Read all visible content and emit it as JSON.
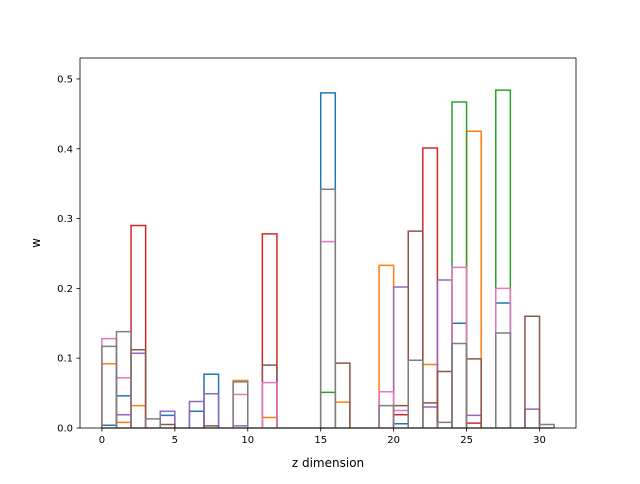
{
  "chart_data": {
    "type": "bar",
    "title": "",
    "xlabel": "z dimension",
    "ylabel": "w",
    "xlim": [
      -1.5,
      32.5
    ],
    "ylim": [
      0,
      0.53
    ],
    "xticks": [
      0,
      5,
      10,
      15,
      20,
      25,
      30
    ],
    "yticks": [
      0.0,
      0.1,
      0.2,
      0.3,
      0.4,
      0.5
    ],
    "bar_width": 1,
    "grid": false,
    "legend": "none",
    "bar_style": "step outlines, unfilled, drawn from x to x+1",
    "series": [
      {
        "color": "#1f77b4",
        "values": [
          {
            "x": 0,
            "y": 0.004
          },
          {
            "x": 1,
            "y": 0.046
          },
          {
            "x": 4,
            "y": 0.018
          },
          {
            "x": 6,
            "y": 0.024
          },
          {
            "x": 7,
            "y": 0.077
          },
          {
            "x": 15,
            "y": 0.48
          },
          {
            "x": 20,
            "y": 0.006
          },
          {
            "x": 24,
            "y": 0.15
          },
          {
            "x": 27,
            "y": 0.179
          }
        ]
      },
      {
        "color": "#ff7f0e",
        "values": [
          {
            "x": 0,
            "y": 0.092
          },
          {
            "x": 1,
            "y": 0.008
          },
          {
            "x": 2,
            "y": 0.032
          },
          {
            "x": 9,
            "y": 0.068
          },
          {
            "x": 11,
            "y": 0.015
          },
          {
            "x": 16,
            "y": 0.037
          },
          {
            "x": 19,
            "y": 0.233
          },
          {
            "x": 22,
            "y": 0.091
          },
          {
            "x": 25,
            "y": 0.425
          }
        ]
      },
      {
        "color": "#2ca02c",
        "values": [
          {
            "x": 15,
            "y": 0.051
          },
          {
            "x": 24,
            "y": 0.467
          },
          {
            "x": 27,
            "y": 0.484
          }
        ]
      },
      {
        "color": "#d62728",
        "values": [
          {
            "x": 2,
            "y": 0.29
          },
          {
            "x": 11,
            "y": 0.278
          },
          {
            "x": 20,
            "y": 0.019
          },
          {
            "x": 22,
            "y": 0.401
          },
          {
            "x": 25,
            "y": 0.007
          }
        ]
      },
      {
        "color": "#9467bd",
        "values": [
          {
            "x": 1,
            "y": 0.019
          },
          {
            "x": 2,
            "y": 0.107
          },
          {
            "x": 4,
            "y": 0.024
          },
          {
            "x": 6,
            "y": 0.038
          },
          {
            "x": 7,
            "y": 0.049
          },
          {
            "x": 9,
            "y": 0.003
          },
          {
            "x": 20,
            "y": 0.202
          },
          {
            "x": 22,
            "y": 0.03
          },
          {
            "x": 23,
            "y": 0.212
          },
          {
            "x": 25,
            "y": 0.018
          },
          {
            "x": 29,
            "y": 0.027
          }
        ]
      },
      {
        "color": "#8c564b",
        "values": [
          {
            "x": 2,
            "y": 0.112
          },
          {
            "x": 4,
            "y": 0.005
          },
          {
            "x": 7,
            "y": 0.003
          },
          {
            "x": 11,
            "y": 0.09
          },
          {
            "x": 16,
            "y": 0.093
          },
          {
            "x": 20,
            "y": 0.032
          },
          {
            "x": 21,
            "y": 0.282
          },
          {
            "x": 22,
            "y": 0.036
          },
          {
            "x": 23,
            "y": 0.081
          },
          {
            "x": 25,
            "y": 0.099
          },
          {
            "x": 29,
            "y": 0.16
          }
        ]
      },
      {
        "color": "#e377c2",
        "values": [
          {
            "x": 0,
            "y": 0.128
          },
          {
            "x": 1,
            "y": 0.072
          },
          {
            "x": 9,
            "y": 0.048
          },
          {
            "x": 11,
            "y": 0.065
          },
          {
            "x": 15,
            "y": 0.267
          },
          {
            "x": 19,
            "y": 0.052
          },
          {
            "x": 20,
            "y": 0.025
          },
          {
            "x": 24,
            "y": 0.23
          },
          {
            "x": 27,
            "y": 0.2
          }
        ]
      },
      {
        "color": "#7f7f7f",
        "values": [
          {
            "x": 0,
            "y": 0.117
          },
          {
            "x": 1,
            "y": 0.138
          },
          {
            "x": 3,
            "y": 0.013
          },
          {
            "x": 9,
            "y": 0.066
          },
          {
            "x": 15,
            "y": 0.342
          },
          {
            "x": 19,
            "y": 0.032
          },
          {
            "x": 21,
            "y": 0.097
          },
          {
            "x": 23,
            "y": 0.008
          },
          {
            "x": 24,
            "y": 0.121
          },
          {
            "x": 27,
            "y": 0.136
          },
          {
            "x": 30,
            "y": 0.005
          }
        ]
      }
    ]
  }
}
